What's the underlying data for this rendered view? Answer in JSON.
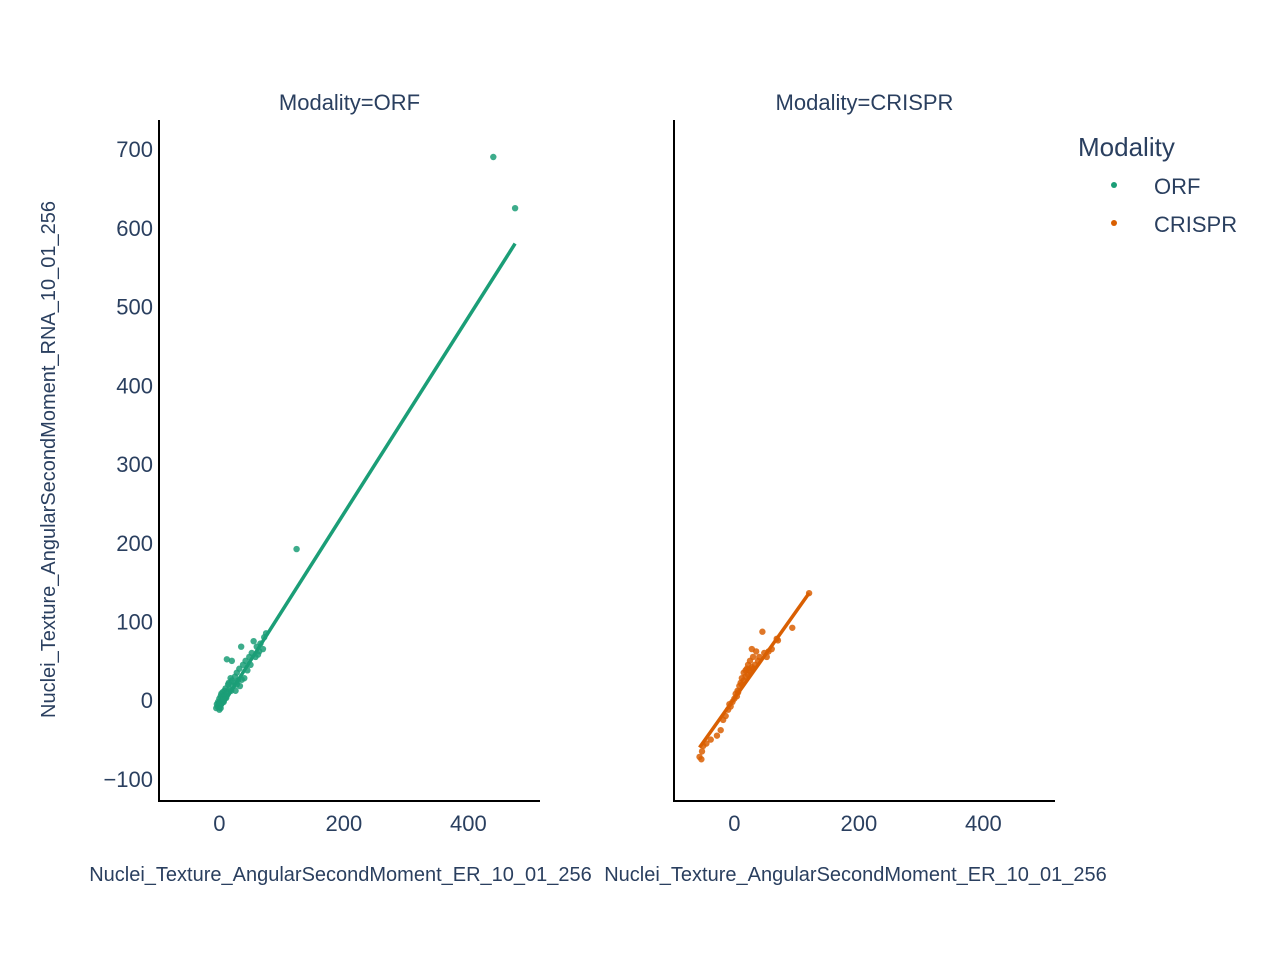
{
  "chart_data": {
    "type": "scatter",
    "legend": {
      "title": "Modality",
      "placement": "top-right"
    },
    "grid": false,
    "facets": [
      {
        "title": "Modality=ORF",
        "series_name": "ORF",
        "color": "#1b9e77",
        "xlabel": "Nuclei_Texture_AngularSecondMoment_ER_10_01_256",
        "ylabel": "Nuclei_Texture_AngularSecondMoment_RNA_10_01_256",
        "xlim": [
          -97,
          515
        ],
        "ylim": [
          -128,
          737
        ],
        "xticks": [
          0,
          200,
          400
        ],
        "yticks": [
          -100,
          0,
          100,
          200,
          300,
          400,
          500,
          600,
          700
        ],
        "trendline": [
          [
            0,
            -12
          ],
          [
            475,
            580
          ]
        ],
        "points": [
          [
            440,
            690
          ],
          [
            475,
            625
          ],
          [
            124,
            192
          ],
          [
            75,
            85
          ],
          [
            72,
            80
          ],
          [
            66,
            72
          ],
          [
            60,
            68
          ],
          [
            55,
            75
          ],
          [
            52,
            60
          ],
          [
            48,
            55
          ],
          [
            35,
            68
          ],
          [
            42,
            50
          ],
          [
            38,
            45
          ],
          [
            32,
            40
          ],
          [
            28,
            35
          ],
          [
            40,
            28
          ],
          [
            30,
            25
          ],
          [
            20,
            50
          ],
          [
            12,
            52
          ],
          [
            25,
            30
          ],
          [
            18,
            28
          ],
          [
            15,
            22
          ],
          [
            22,
            18
          ],
          [
            10,
            15
          ],
          [
            8,
            12
          ],
          [
            5,
            10
          ],
          [
            3,
            8
          ],
          [
            2,
            5
          ],
          [
            0,
            2
          ],
          [
            -2,
            -2
          ],
          [
            -4,
            -5
          ],
          [
            -3,
            -8
          ],
          [
            1,
            -6
          ],
          [
            4,
            0
          ],
          [
            6,
            4
          ],
          [
            9,
            6
          ],
          [
            12,
            10
          ],
          [
            16,
            14
          ],
          [
            14,
            20
          ],
          [
            20,
            25
          ],
          [
            24,
            22
          ],
          [
            7,
            -2
          ],
          [
            -5,
            -10
          ],
          [
            0,
            -12
          ],
          [
            2,
            -10
          ],
          [
            11,
            3
          ],
          [
            26,
            12
          ],
          [
            33,
            18
          ],
          [
            45,
            38
          ],
          [
            58,
            55
          ],
          [
            64,
            62
          ],
          [
            70,
            65
          ],
          [
            62,
            58
          ],
          [
            50,
            45
          ],
          [
            36,
            26
          ],
          [
            28,
            20
          ],
          [
            19,
            12
          ],
          [
            13,
            8
          ],
          [
            6,
            1
          ],
          [
            -1,
            -4
          ]
        ]
      },
      {
        "title": "Modality=CRISPR",
        "series_name": "CRISPR",
        "color": "#d95f02",
        "xlabel": "Nuclei_Texture_AngularSecondMoment_ER_10_01_256",
        "ylabel": "",
        "xlim": [
          -97,
          515
        ],
        "ylim": [
          -128,
          737
        ],
        "xticks": [
          0,
          200,
          400
        ],
        "yticks": [],
        "trendline": [
          [
            -56,
            -60
          ],
          [
            120,
            136
          ]
        ],
        "points": [
          [
            120,
            136
          ],
          [
            93,
            92
          ],
          [
            70,
            76
          ],
          [
            68,
            78
          ],
          [
            45,
            87
          ],
          [
            52,
            55
          ],
          [
            48,
            60
          ],
          [
            35,
            62
          ],
          [
            28,
            65
          ],
          [
            30,
            55
          ],
          [
            25,
            50
          ],
          [
            22,
            45
          ],
          [
            20,
            40
          ],
          [
            18,
            38
          ],
          [
            15,
            35
          ],
          [
            12,
            28
          ],
          [
            10,
            22
          ],
          [
            8,
            18
          ],
          [
            5,
            12
          ],
          [
            2,
            8
          ],
          [
            0,
            2
          ],
          [
            -3,
            -2
          ],
          [
            -6,
            -8
          ],
          [
            -10,
            -12
          ],
          [
            -14,
            -20
          ],
          [
            -18,
            -25
          ],
          [
            -22,
            -38
          ],
          [
            -28,
            -45
          ],
          [
            -38,
            -50
          ],
          [
            -45,
            -55
          ],
          [
            -50,
            -58
          ],
          [
            -52,
            -65
          ],
          [
            -56,
            -72
          ],
          [
            -53,
            -75
          ],
          [
            15,
            25
          ],
          [
            18,
            30
          ],
          [
            22,
            32
          ],
          [
            26,
            35
          ],
          [
            30,
            40
          ],
          [
            33,
            45
          ],
          [
            38,
            50
          ],
          [
            40,
            55
          ],
          [
            12,
            20
          ],
          [
            6,
            10
          ],
          [
            4,
            5
          ],
          [
            -8,
            -5
          ],
          [
            55,
            62
          ],
          [
            60,
            65
          ],
          [
            28,
            42
          ],
          [
            24,
            38
          ]
        ]
      }
    ]
  }
}
